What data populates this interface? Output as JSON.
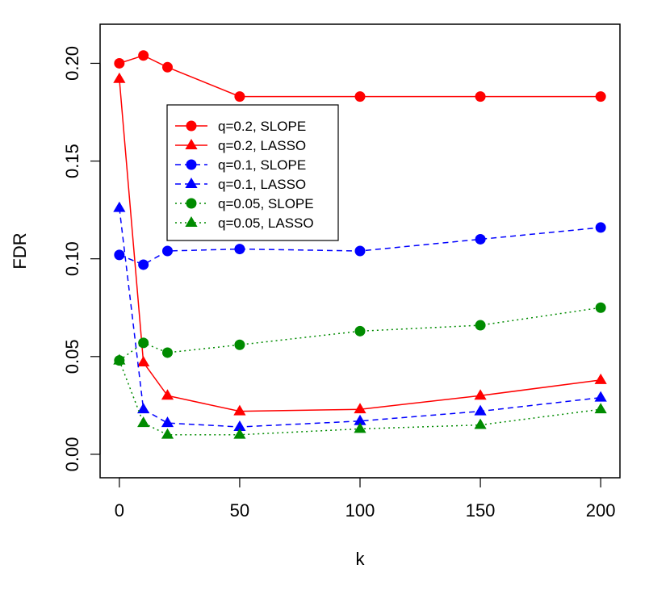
{
  "chart_data": {
    "type": "line",
    "xlabel": "k",
    "ylabel": "FDR",
    "xlim": [
      -8,
      208
    ],
    "ylim": [
      -0.012,
      0.22
    ],
    "x": [
      0,
      10,
      20,
      50,
      100,
      150,
      200
    ],
    "x_ticks": [
      0,
      50,
      100,
      150,
      200
    ],
    "x_tick_labels": [
      "0",
      "50",
      "100",
      "150",
      "200"
    ],
    "y_ticks": [
      0.0,
      0.05,
      0.1,
      0.15,
      0.2
    ],
    "y_tick_labels": [
      "0.00",
      "0.05",
      "0.10",
      "0.15",
      "0.20"
    ],
    "legend_position": "upper-left inside plot",
    "series": [
      {
        "name": "q=0.2, SLOPE",
        "color": "#ff0000",
        "line": "solid",
        "marker": "circle",
        "values": [
          0.2,
          0.204,
          0.198,
          0.183,
          0.183,
          0.183,
          0.183
        ]
      },
      {
        "name": "q=0.2, LASSO",
        "color": "#ff0000",
        "line": "solid",
        "marker": "triangle",
        "values": [
          0.192,
          0.047,
          0.03,
          0.022,
          0.023,
          0.03,
          0.038
        ]
      },
      {
        "name": "q=0.1, SLOPE",
        "color": "#0000ff",
        "line": "dashed",
        "marker": "circle",
        "values": [
          0.102,
          0.097,
          0.104,
          0.105,
          0.104,
          0.11,
          0.116
        ]
      },
      {
        "name": "q=0.1, LASSO",
        "color": "#0000ff",
        "line": "dashed",
        "marker": "triangle",
        "values": [
          0.126,
          0.023,
          0.016,
          0.014,
          0.017,
          0.022,
          0.029
        ]
      },
      {
        "name": "q=0.05, SLOPE",
        "color": "#008b00",
        "line": "dotted",
        "marker": "circle",
        "values": [
          0.048,
          0.057,
          0.052,
          0.056,
          0.063,
          0.066,
          0.075
        ]
      },
      {
        "name": "q=0.05, LASSO",
        "color": "#008b00",
        "line": "dotted",
        "marker": "triangle",
        "values": [
          0.048,
          0.016,
          0.01,
          0.01,
          0.013,
          0.015,
          0.023
        ]
      }
    ]
  }
}
